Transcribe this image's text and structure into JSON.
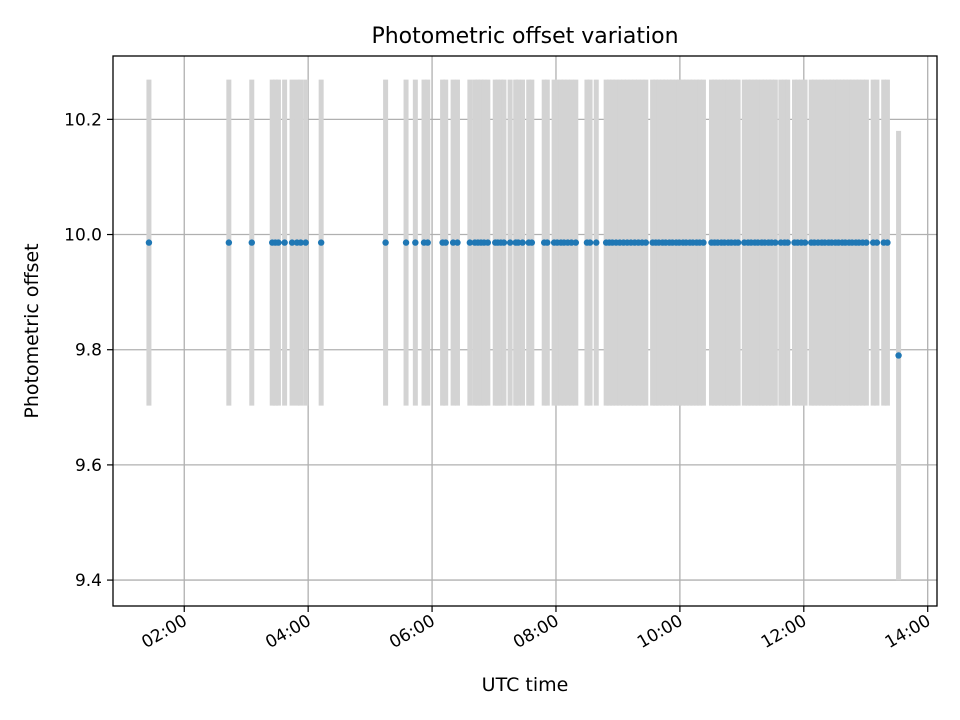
{
  "chart_data": {
    "type": "scatter",
    "title": "Photometric offset variation",
    "xlabel": "UTC time",
    "ylabel": "Photometric offset",
    "x_unit": "hours UTC",
    "xlim": [
      0.85,
      14.15
    ],
    "ylim": [
      9.355,
      10.31
    ],
    "x_ticks": [
      {
        "value": 2,
        "label": "02:00"
      },
      {
        "value": 4,
        "label": "04:00"
      },
      {
        "value": 6,
        "label": "06:00"
      },
      {
        "value": 8,
        "label": "08:00"
      },
      {
        "value": 10,
        "label": "10:00"
      },
      {
        "value": 12,
        "label": "12:00"
      },
      {
        "value": 14,
        "label": "14:00"
      }
    ],
    "y_ticks": [
      {
        "value": 9.4,
        "label": "9.4"
      },
      {
        "value": 9.6,
        "label": "9.6"
      },
      {
        "value": 9.8,
        "label": "9.8"
      },
      {
        "value": 10.0,
        "label": "10.0"
      },
      {
        "value": 10.2,
        "label": "10.2"
      }
    ],
    "grid": true,
    "colors": {
      "marker": "#1f77b4",
      "errorbar": "#d3d3d3",
      "grid": "#b0b0b0"
    },
    "series": [
      {
        "marker": "dot",
        "error": 0.283,
        "y": 9.986,
        "x": [
          1.43,
          2.72,
          3.09,
          3.42,
          3.47,
          3.52,
          3.62,
          3.74,
          3.82,
          3.88,
          3.96,
          4.21,
          5.25,
          5.58,
          5.73,
          5.87,
          5.93,
          6.17,
          6.22,
          6.34,
          6.41,
          6.61,
          6.69,
          6.74,
          6.79,
          6.84,
          6.9,
          7.02,
          7.06,
          7.11,
          7.16,
          7.26,
          7.35,
          7.39,
          7.46,
          7.56,
          7.61,
          7.81,
          7.86,
          7.97,
          8.02,
          8.08,
          8.13,
          8.19,
          8.25,
          8.32,
          8.5,
          8.55,
          8.65,
          8.81,
          8.86,
          8.91,
          8.97,
          9.03,
          9.09,
          9.15,
          9.21,
          9.27,
          9.33,
          9.39,
          9.45,
          9.56,
          9.61,
          9.66,
          9.72,
          9.77,
          9.83,
          9.88,
          9.94,
          9.99,
          10.05,
          10.1,
          10.16,
          10.21,
          10.27,
          10.32,
          10.38,
          10.51,
          10.56,
          10.61,
          10.67,
          10.72,
          10.78,
          10.83,
          10.89,
          10.94,
          11.04,
          11.1,
          11.15,
          11.21,
          11.26,
          11.32,
          11.37,
          11.43,
          11.48,
          11.54,
          11.63,
          11.69,
          11.74,
          11.85,
          11.9,
          11.96,
          12.02,
          12.12,
          12.17,
          12.23,
          12.29,
          12.34,
          12.4,
          12.45,
          12.51,
          12.56,
          12.62,
          12.67,
          12.73,
          12.78,
          12.84,
          12.89,
          12.95,
          13.01,
          13.12,
          13.18,
          13.29,
          13.35
        ]
      },
      {
        "marker": "dot",
        "error": 0.39,
        "y": 9.79,
        "x": [
          13.53
        ]
      }
    ]
  }
}
